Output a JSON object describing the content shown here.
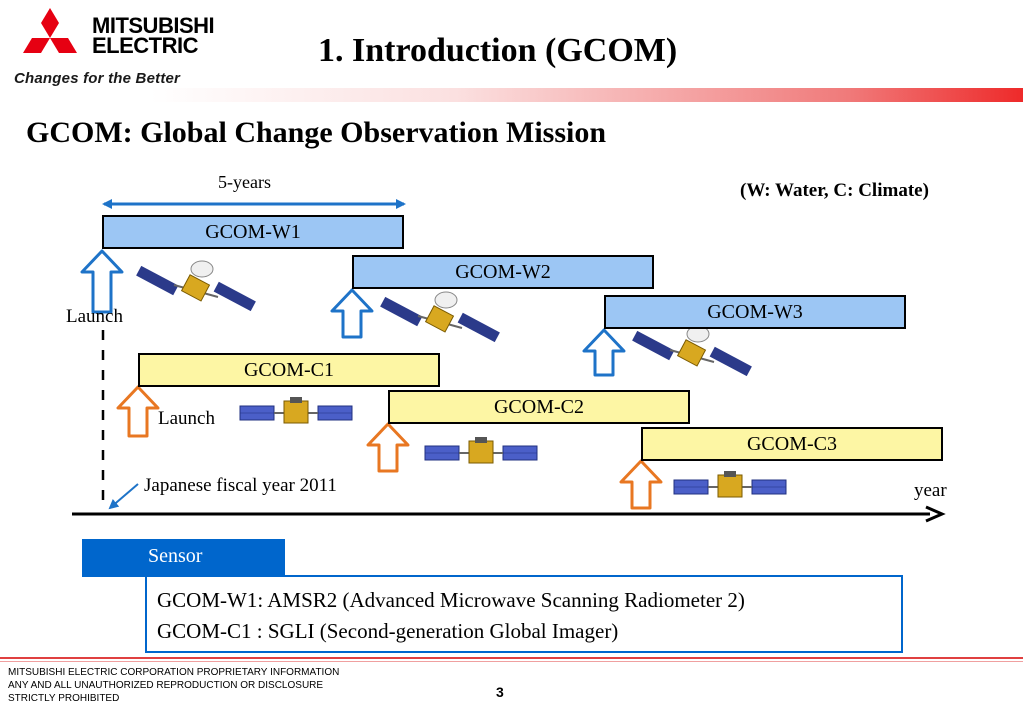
{
  "brand": {
    "name_line1": "MITSUBISHI",
    "name_line2": "ELECTRIC",
    "tagline": "Changes for the Better",
    "accent_color": "#e60012"
  },
  "slide": {
    "title": "1. Introduction (GCOM)",
    "subtitle": "GCOM: Global Change Observation Mission",
    "legend_note": "(W: Water, C: Climate)"
  },
  "timeline": {
    "span_label": "5-years",
    "launch_label_w": "Launch",
    "launch_label_c": "Launch",
    "fiscal_year_label": "Japanese fiscal year 2011",
    "axis_label": "year",
    "missions": [
      {
        "name": "GCOM-W1",
        "series": "W"
      },
      {
        "name": "GCOM-W2",
        "series": "W"
      },
      {
        "name": "GCOM-W3",
        "series": "W"
      },
      {
        "name": "GCOM-C1",
        "series": "C"
      },
      {
        "name": "GCOM-C2",
        "series": "C"
      },
      {
        "name": "GCOM-C3",
        "series": "C"
      }
    ],
    "colors": {
      "w_bar": "#9cc6f4",
      "c_bar": "#fdf6a4",
      "w_arrow": "#1e73c8",
      "c_arrow": "#e87722"
    }
  },
  "sensor": {
    "tab_label": "Sensor",
    "lines": [
      "GCOM-W1: AMSR2 (Advanced Microwave Scanning Radiometer 2)",
      "GCOM-C1 : SGLI (Second-generation Global Imager)"
    ]
  },
  "footer": {
    "notice_line1": "MITSUBISHI ELECTRIC CORPORATION  PROPRIETARY INFORMATION",
    "notice_line2": "ANY AND ALL UNAUTHORIZED  REPRODUCTION OR DISCLOSURE",
    "notice_line3": "STRICTLY PROHIBITED",
    "page_number": "3"
  }
}
